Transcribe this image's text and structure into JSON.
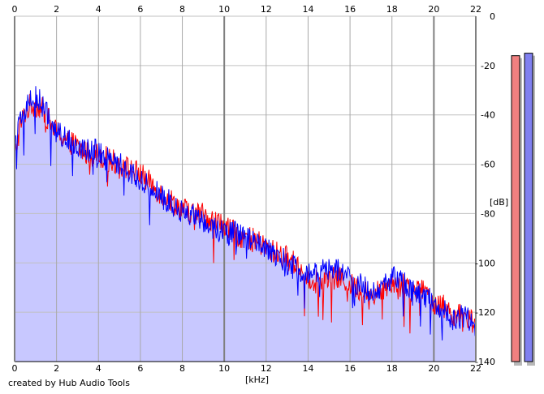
{
  "credit": "created by Hub Audio Tools",
  "chart_data": {
    "type": "area",
    "xlabel": "[kHz]",
    "ylabel": "[dB]",
    "xlim": [
      0,
      22
    ],
    "ylim": [
      -140,
      0
    ],
    "x_ticks": [
      0,
      2,
      4,
      6,
      8,
      10,
      12,
      14,
      16,
      18,
      20,
      22
    ],
    "y_ticks": [
      0,
      -20,
      -40,
      -60,
      -80,
      -100,
      -120,
      -140
    ],
    "grid": true,
    "area_fill_color": "#c8c8ff",
    "series": [
      {
        "color": "#ff0000",
        "x": [
          0,
          0.25,
          0.5,
          0.75,
          1,
          1.25,
          1.5,
          1.75,
          2,
          2.5,
          3,
          3.5,
          4,
          4.5,
          5,
          5.5,
          6,
          6.5,
          7,
          7.5,
          8,
          8.5,
          9,
          9.5,
          10,
          10.5,
          11,
          11.5,
          12,
          12.5,
          13,
          13.5,
          14,
          14.5,
          15,
          15.5,
          16,
          16.5,
          17,
          17.5,
          18,
          18.5,
          19,
          19.5,
          20,
          20.5,
          21,
          21.5,
          22
        ],
        "values": [
          -58,
          -45,
          -39,
          -36,
          -36,
          -37,
          -40,
          -44,
          -47,
          -50,
          -53,
          -56,
          -56,
          -58,
          -60,
          -62,
          -64,
          -68,
          -72,
          -75,
          -78,
          -80,
          -80,
          -83,
          -85,
          -88,
          -90,
          -91,
          -94,
          -96,
          -98,
          -101,
          -106,
          -108,
          -107,
          -106,
          -109,
          -111,
          -113,
          -111,
          -107,
          -109,
          -112,
          -111,
          -116,
          -118,
          -121,
          -122,
          -124
        ]
      },
      {
        "color": "#0000ff",
        "x": [
          0,
          0.25,
          0.5,
          0.75,
          1,
          1.25,
          1.5,
          1.75,
          2,
          2.5,
          3,
          3.5,
          4,
          4.5,
          5,
          5.5,
          6,
          6.5,
          7,
          7.5,
          8,
          8.5,
          9,
          9.5,
          10,
          10.5,
          11,
          11.5,
          12,
          12.5,
          13,
          13.5,
          14,
          14.5,
          15,
          15.5,
          16,
          16.5,
          17,
          17.5,
          18,
          18.5,
          19,
          19.5,
          20,
          20.5,
          21,
          21.5,
          22
        ],
        "values": [
          -52,
          -44,
          -38,
          -34,
          -33,
          -35,
          -39,
          -43,
          -47,
          -50,
          -52,
          -54,
          -55,
          -57,
          -60,
          -63,
          -66,
          -70,
          -73,
          -76,
          -79,
          -81,
          -83,
          -86,
          -87,
          -88,
          -90,
          -92,
          -95,
          -97,
          -100,
          -103,
          -105,
          -104,
          -102,
          -103,
          -106,
          -109,
          -112,
          -110,
          -106,
          -108,
          -111,
          -112,
          -117,
          -120,
          -123,
          -121,
          -126
        ]
      }
    ],
    "level_meters": [
      {
        "color": "#f08080",
        "value": -16
      },
      {
        "color": "#8080f0",
        "value": -15
      }
    ]
  }
}
